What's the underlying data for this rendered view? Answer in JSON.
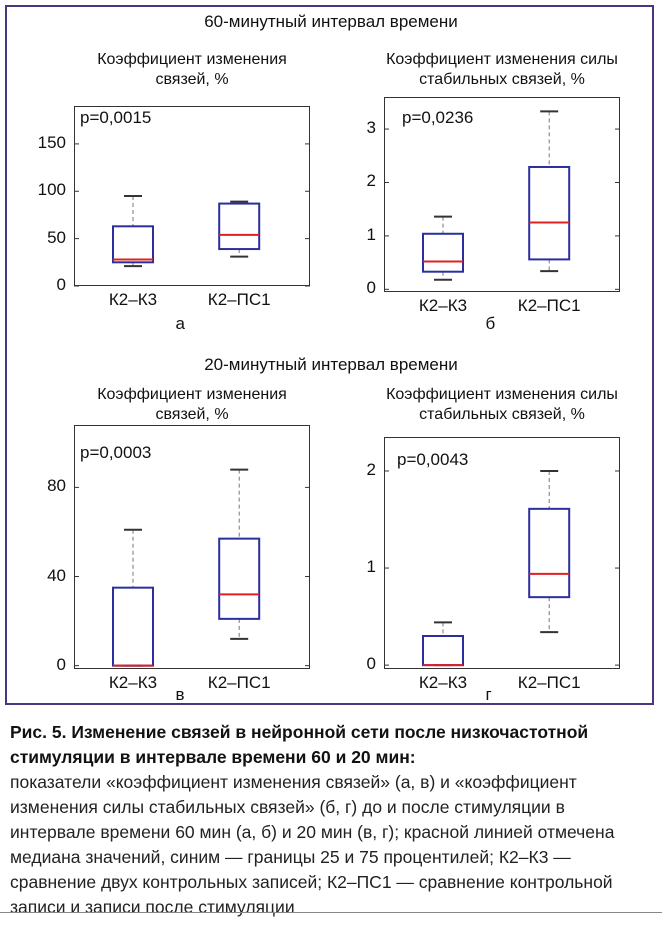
{
  "sections": {
    "top_title": "60-минутный интервал времени",
    "bottom_title": "20-минутный интервал времени"
  },
  "chart_data": [
    {
      "type": "box",
      "panel": "а",
      "title": [
        "Коэффициент изменения",
        "связей, %"
      ],
      "pvalue": "p=0,0015",
      "categories": [
        "К2–К3",
        "К2–ПС1"
      ],
      "yticks": [
        "0",
        "50",
        "100",
        "150"
      ],
      "ylim": [
        0,
        190
      ],
      "boxes": [
        {
          "whisker_low": 21,
          "q1": 25,
          "median": 28,
          "q3": 63,
          "whisker_high": 95
        },
        {
          "whisker_low": 31,
          "q1": 39,
          "median": 54,
          "q3": 87,
          "whisker_high": 89
        }
      ],
      "colors": {
        "box": "#2b2f9e",
        "median": "#e02020",
        "whisker": "#333333"
      }
    },
    {
      "type": "box",
      "panel": "б",
      "title": [
        "Коэффициент изменения силы",
        "стабильных связей, %"
      ],
      "pvalue": "p=0,0236",
      "categories": [
        "К2–К3",
        "К2–ПС1"
      ],
      "yticks": [
        "0",
        "1",
        "2",
        "3"
      ],
      "ylim": [
        -0.05,
        3.6
      ],
      "boxes": [
        {
          "whisker_low": 0.18,
          "q1": 0.33,
          "median": 0.52,
          "q3": 1.04,
          "whisker_high": 1.36
        },
        {
          "whisker_low": 0.34,
          "q1": 0.56,
          "median": 1.25,
          "q3": 2.29,
          "whisker_high": 3.33
        }
      ],
      "colors": {
        "box": "#2b2f9e",
        "median": "#e02020",
        "whisker": "#333333"
      }
    },
    {
      "type": "box",
      "panel": "в",
      "title": [
        "Коэффициент изменения",
        "связей, %"
      ],
      "pvalue": "p=0,0003",
      "categories": [
        "К2–К3",
        "К2–ПС1"
      ],
      "yticks": [
        "0",
        "40",
        "80"
      ],
      "ylim": [
        -1.5,
        108
      ],
      "boxes": [
        {
          "whisker_low": 0,
          "q1": 0,
          "median": 0,
          "q3": 35,
          "whisker_high": 61
        },
        {
          "whisker_low": 12,
          "q1": 21,
          "median": 32,
          "q3": 57,
          "whisker_high": 88
        }
      ],
      "colors": {
        "box": "#2b2f9e",
        "median": "#e02020",
        "whisker": "#333333"
      }
    },
    {
      "type": "box",
      "panel": "г",
      "title": [
        "Коэффициент изменения силы",
        "стабильных связей, %"
      ],
      "pvalue": "p=0,0043",
      "categories": [
        "К2–К3",
        "К2–ПС1"
      ],
      "yticks": [
        "0",
        "1",
        "2"
      ],
      "ylim": [
        -0.04,
        2.35
      ],
      "boxes": [
        {
          "whisker_low": 0,
          "q1": 0,
          "median": 0,
          "q3": 0.3,
          "whisker_high": 0.44
        },
        {
          "whisker_low": 0.34,
          "q1": 0.7,
          "median": 0.94,
          "q3": 1.61,
          "whisker_high": 2.0
        }
      ],
      "colors": {
        "box": "#2b2f9e",
        "median": "#e02020",
        "whisker": "#333333"
      }
    }
  ],
  "caption": {
    "title": "Рис. 5. Изменение связей в нейронной сети после низкочастотной стимуляции в интервале времени 60 и 20 мин:",
    "text": "показатели «коэффициент изменения связей» (а, в) и «коэффициент изменения силы стабильных связей» (б, г) до и после стимуляции в интервале времени 60 мин (а, б) и 20 мин (в, г); красной линией отмечена медиана значений, синим — границы 25 и 75 процентилей; К2–К3 — сравнение двух контрольных записей; К2–ПС1 — сравнение контрольной записи и записи после стимуляции"
  }
}
